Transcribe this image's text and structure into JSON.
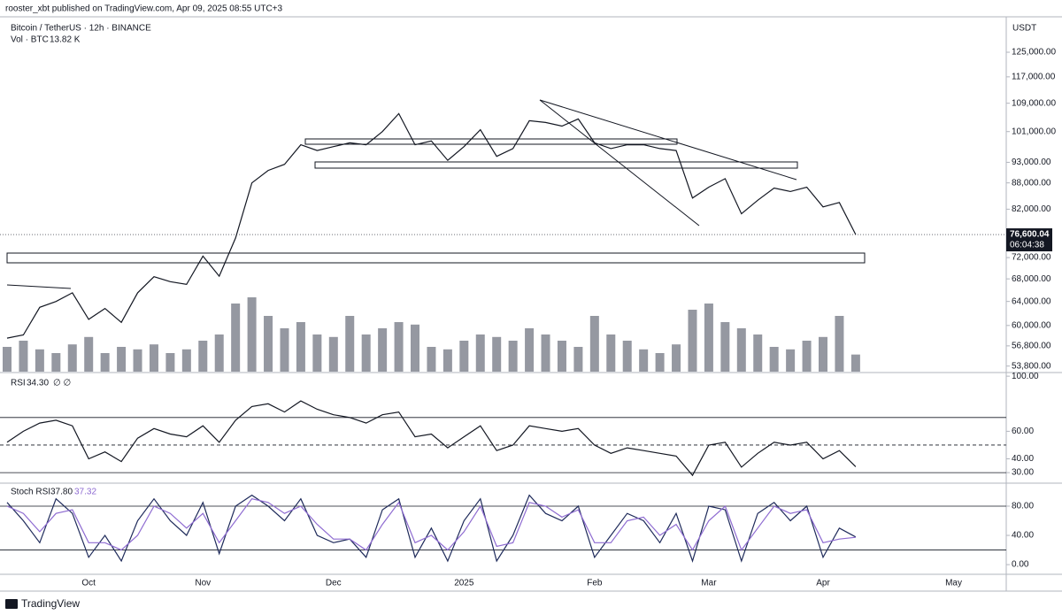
{
  "header": {
    "publisher": "rooster_xbt published on TradingView.com, Apr 09, 2025 08:55 UTC+3",
    "brand": "TradingView"
  },
  "chart_data": [
    {
      "type": "line",
      "title": "Bitcoin / TetherUS · 12h · BINANCE",
      "y_axis_label": "USDT",
      "log_scale": true,
      "color": "#131722",
      "ylim": [
        53000,
        136500
      ],
      "yticks": [
        {
          "value": 125000,
          "label": "125,000.00"
        },
        {
          "value": 117000,
          "label": "117,000.00"
        },
        {
          "value": 109000,
          "label": "109,000.00"
        },
        {
          "value": 101000,
          "label": "101,000.00"
        },
        {
          "value": 93000,
          "label": "93,000.00"
        },
        {
          "value": 88000,
          "label": "88,000.00"
        },
        {
          "value": 82000,
          "label": "82,000.00"
        },
        {
          "value": 72000,
          "label": "72,000.00"
        },
        {
          "value": 68000,
          "label": "68,000.00"
        },
        {
          "value": 64000,
          "label": "64,000.00"
        },
        {
          "value": 60000,
          "label": "60,000.00"
        },
        {
          "value": 56800,
          "label": "56,800.00"
        },
        {
          "value": 53800,
          "label": "53,800.00"
        }
      ],
      "values": [
        58000,
        58500,
        63000,
        64000,
        65500,
        61000,
        62800,
        60500,
        65500,
        68400,
        67500,
        67000,
        72300,
        68500,
        75900,
        88000,
        91000,
        92500,
        97500,
        96000,
        97000,
        98000,
        97500,
        101000,
        106000,
        97500,
        98500,
        93500,
        97000,
        101500,
        94500,
        96500,
        104000,
        103500,
        102500,
        104500,
        98000,
        96500,
        97500,
        97500,
        96500,
        96000,
        84500,
        87000,
        89000,
        81000,
        84000,
        86800,
        86000,
        87000,
        82500,
        83500,
        76600.04
      ],
      "last_price_label": "76,600.04",
      "countdown": "06:04:38",
      "volume": {
        "label": "Vol · BTC",
        "last_value_label": "13.82 K",
        "color": "#9598a1",
        "values": [
          20,
          25,
          18,
          15,
          22,
          28,
          15,
          20,
          18,
          22,
          15,
          18,
          25,
          30,
          55,
          60,
          45,
          35,
          40,
          30,
          28,
          45,
          30,
          35,
          40,
          38,
          20,
          18,
          25,
          30,
          28,
          25,
          35,
          30,
          25,
          20,
          45,
          30,
          25,
          18,
          15,
          22,
          50,
          55,
          40,
          35,
          30,
          20,
          18,
          25,
          28,
          45,
          13.82
        ]
      }
    },
    {
      "type": "line",
      "title": "RSI",
      "value_label": "34.30",
      "extra": "∅ ∅",
      "color": "#131722",
      "ylim": [
        23,
        102
      ],
      "yticks": [
        {
          "value": 100,
          "label": "100.00"
        },
        {
          "value": 60,
          "label": "60.00"
        },
        {
          "value": 40,
          "label": "40.00"
        },
        {
          "value": 30,
          "label": "30.00"
        }
      ],
      "bands": [
        70,
        50,
        30
      ],
      "values": [
        52,
        60,
        66,
        68,
        64,
        40,
        45,
        38,
        55,
        62,
        58,
        56,
        64,
        52,
        68,
        78,
        80,
        74,
        82,
        76,
        72,
        70,
        66,
        72,
        74,
        56,
        58,
        48,
        56,
        64,
        46,
        50,
        64,
        62,
        60,
        62,
        50,
        44,
        48,
        46,
        44,
        42,
        28,
        50,
        52,
        34,
        44,
        52,
        50,
        52,
        40,
        46,
        34.3
      ]
    },
    {
      "type": "line",
      "title": "Stoch RSI",
      "ylim": [
        -12,
        109
      ],
      "yticks": [
        {
          "value": 80,
          "label": "80.00"
        },
        {
          "value": 40,
          "label": "40.00"
        },
        {
          "value": 0,
          "label": "0.00"
        }
      ],
      "bands": [
        80,
        20
      ],
      "categories": [
        null,
        null,
        null,
        null,
        null,
        "Oct",
        null,
        null,
        null,
        null,
        null,
        null,
        "Nov",
        null,
        null,
        null,
        null,
        null,
        null,
        null,
        "Dec",
        null,
        null,
        null,
        null,
        null,
        null,
        null,
        "2025",
        null,
        null,
        null,
        null,
        null,
        null,
        null,
        "Feb",
        null,
        null,
        null,
        null,
        null,
        null,
        "Mar",
        null,
        null,
        null,
        null,
        null,
        null,
        "Apr",
        null,
        null,
        null,
        null,
        null,
        null,
        null,
        "May",
        null,
        null
      ],
      "series": [
        {
          "color": "#1e2a5a",
          "value_label": "37.80",
          "values": [
            85,
            60,
            30,
            90,
            70,
            10,
            40,
            5,
            60,
            90,
            60,
            40,
            85,
            15,
            80,
            95,
            80,
            60,
            90,
            40,
            30,
            35,
            10,
            75,
            90,
            10,
            50,
            5,
            60,
            90,
            5,
            40,
            95,
            70,
            60,
            80,
            10,
            40,
            70,
            60,
            30,
            70,
            5,
            80,
            75,
            5,
            70,
            85,
            60,
            80,
            10,
            50,
            37.8,
            null,
            null,
            null,
            null,
            null,
            null,
            null,
            null
          ]
        },
        {
          "color": "#8e6bd1",
          "value_label": "37.32",
          "values": [
            80,
            70,
            45,
            70,
            75,
            30,
            30,
            20,
            40,
            80,
            70,
            50,
            70,
            30,
            60,
            90,
            85,
            70,
            80,
            55,
            35,
            35,
            20,
            55,
            85,
            30,
            40,
            20,
            45,
            80,
            25,
            30,
            85,
            80,
            65,
            75,
            30,
            30,
            60,
            65,
            40,
            55,
            20,
            60,
            80,
            20,
            50,
            80,
            70,
            75,
            30,
            35,
            37.32,
            null,
            null,
            null,
            null,
            null,
            null,
            null,
            null
          ]
        }
      ]
    }
  ]
}
